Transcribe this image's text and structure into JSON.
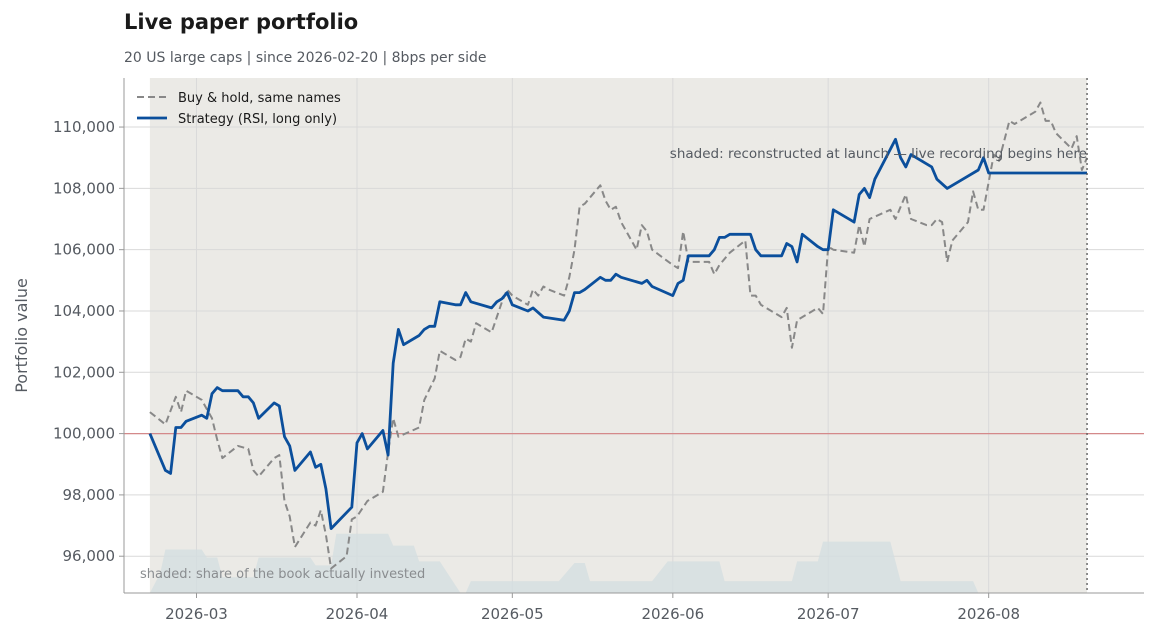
{
  "header": {
    "title": "Live paper portfolio",
    "subtitle": "20 US large caps | since 2026-02-20 | 8bps per side"
  },
  "chart_data": {
    "type": "line",
    "title": "Live paper portfolio",
    "subtitle": "20 US large caps | since 2026-02-20 | 8bps per side",
    "xlabel": "",
    "ylabel": "Portfolio value",
    "x_ticks": [
      "2026-03",
      "2026-04",
      "2026-05",
      "2026-06",
      "2026-07",
      "2026-08"
    ],
    "y_ticks": [
      "96,000",
      "98,000",
      "100,000",
      "102,000",
      "104,000",
      "106,000",
      "108,000",
      "110,000"
    ],
    "xlim": [
      "2026-02-15",
      "2026-08-31"
    ],
    "ylim": [
      94800,
      111600
    ],
    "grid": true,
    "legend_position": "top-left",
    "reference_line": {
      "y": 100000,
      "color": "#d4898a"
    },
    "shaded_region": {
      "from": "2026-02-20",
      "to": "2026-08-20",
      "color": "#ebeae6"
    },
    "live_marker": {
      "x": "2026-08-20",
      "style": "dotted"
    },
    "annotations": [
      "shaded: reconstructed at launch — live recording begins here",
      "shaded: share of the book actually invested"
    ],
    "series": [
      {
        "name": "Buy & hold, same names",
        "style": "dashed",
        "color": "#888888",
        "points": [
          [
            "2026-02-20",
            100700
          ],
          [
            "2026-02-23",
            100300
          ],
          [
            "2026-02-25",
            101200
          ],
          [
            "2026-02-26",
            100700
          ],
          [
            "2026-02-27",
            101400
          ],
          [
            "2026-03-02",
            101100
          ],
          [
            "2026-03-03",
            100800
          ],
          [
            "2026-03-04",
            100500
          ],
          [
            "2026-03-05",
            99800
          ],
          [
            "2026-03-06",
            99200
          ],
          [
            "2026-03-09",
            99600
          ],
          [
            "2026-03-11",
            99500
          ],
          [
            "2026-03-12",
            98800
          ],
          [
            "2026-03-13",
            98600
          ],
          [
            "2026-03-16",
            99200
          ],
          [
            "2026-03-17",
            99300
          ],
          [
            "2026-03-18",
            97800
          ],
          [
            "2026-03-19",
            97300
          ],
          [
            "2026-03-20",
            96300
          ],
          [
            "2026-03-23",
            97100
          ],
          [
            "2026-03-24",
            97000
          ],
          [
            "2026-03-25",
            97500
          ],
          [
            "2026-03-26",
            96700
          ],
          [
            "2026-03-27",
            95600
          ],
          [
            "2026-03-30",
            96000
          ],
          [
            "2026-03-31",
            97200
          ],
          [
            "2026-04-01",
            97300
          ],
          [
            "2026-04-03",
            97800
          ],
          [
            "2026-04-06",
            98100
          ],
          [
            "2026-04-07",
            99400
          ],
          [
            "2026-04-08",
            100500
          ],
          [
            "2026-04-09",
            99900
          ],
          [
            "2026-04-13",
            100200
          ],
          [
            "2026-04-14",
            101100
          ],
          [
            "2026-04-16",
            101800
          ],
          [
            "2026-04-17",
            102700
          ],
          [
            "2026-04-20",
            102400
          ],
          [
            "2026-04-21",
            102500
          ],
          [
            "2026-04-22",
            103100
          ],
          [
            "2026-04-23",
            103000
          ],
          [
            "2026-04-24",
            103600
          ],
          [
            "2026-04-27",
            103300
          ],
          [
            "2026-04-29",
            104300
          ],
          [
            "2026-04-30",
            104700
          ],
          [
            "2026-05-01",
            104500
          ],
          [
            "2026-05-04",
            104200
          ],
          [
            "2026-05-05",
            104700
          ],
          [
            "2026-05-06",
            104500
          ],
          [
            "2026-05-07",
            104800
          ],
          [
            "2026-05-08",
            104700
          ],
          [
            "2026-05-11",
            104500
          ],
          [
            "2026-05-12",
            105100
          ],
          [
            "2026-05-13",
            106000
          ],
          [
            "2026-05-14",
            107400
          ],
          [
            "2026-05-15",
            107500
          ],
          [
            "2026-05-18",
            108100
          ],
          [
            "2026-05-19",
            107600
          ],
          [
            "2026-05-20",
            107300
          ],
          [
            "2026-05-21",
            107400
          ],
          [
            "2026-05-22",
            106900
          ],
          [
            "2026-05-25",
            106000
          ],
          [
            "2026-05-26",
            106800
          ],
          [
            "2026-05-27",
            106600
          ],
          [
            "2026-05-28",
            106000
          ],
          [
            "2026-06-01",
            105500
          ],
          [
            "2026-06-02",
            105400
          ],
          [
            "2026-06-03",
            106600
          ],
          [
            "2026-06-04",
            105600
          ],
          [
            "2026-06-08",
            105600
          ],
          [
            "2026-06-09",
            105200
          ],
          [
            "2026-06-10",
            105500
          ],
          [
            "2026-06-12",
            105900
          ],
          [
            "2026-06-15",
            106300
          ],
          [
            "2026-06-16",
            104500
          ],
          [
            "2026-06-17",
            104500
          ],
          [
            "2026-06-18",
            104200
          ],
          [
            "2026-06-22",
            103800
          ],
          [
            "2026-06-23",
            104100
          ],
          [
            "2026-06-24",
            102800
          ],
          [
            "2026-06-25",
            103700
          ],
          [
            "2026-06-29",
            104100
          ],
          [
            "2026-06-30",
            103900
          ],
          [
            "2026-07-01",
            106100
          ],
          [
            "2026-07-02",
            106000
          ],
          [
            "2026-07-06",
            105900
          ],
          [
            "2026-07-07",
            106800
          ],
          [
            "2026-07-08",
            106100
          ],
          [
            "2026-07-09",
            107000
          ],
          [
            "2026-07-13",
            107300
          ],
          [
            "2026-07-14",
            107000
          ],
          [
            "2026-07-16",
            107800
          ],
          [
            "2026-07-17",
            107000
          ],
          [
            "2026-07-20",
            106800
          ],
          [
            "2026-07-21",
            106800
          ],
          [
            "2026-07-22",
            107000
          ],
          [
            "2026-07-23",
            106900
          ],
          [
            "2026-07-24",
            105600
          ],
          [
            "2026-07-25",
            106300
          ],
          [
            "2026-07-28",
            106900
          ],
          [
            "2026-07-29",
            107900
          ],
          [
            "2026-07-30",
            107300
          ],
          [
            "2026-07-31",
            107300
          ],
          [
            "2026-08-02",
            109100
          ],
          [
            "2026-08-03",
            108900
          ],
          [
            "2026-08-05",
            110200
          ],
          [
            "2026-08-06",
            110100
          ],
          [
            "2026-08-10",
            110500
          ],
          [
            "2026-08-11",
            110800
          ],
          [
            "2026-08-12",
            110200
          ],
          [
            "2026-08-13",
            110200
          ],
          [
            "2026-08-14",
            109800
          ],
          [
            "2026-08-17",
            109300
          ],
          [
            "2026-08-18",
            109700
          ],
          [
            "2026-08-19",
            108600
          ],
          [
            "2026-08-20",
            109000
          ]
        ]
      },
      {
        "name": "Strategy (RSI, long only)",
        "style": "solid",
        "color": "#0b4f9c",
        "points": [
          [
            "2026-02-20",
            100000
          ],
          [
            "2026-02-23",
            98800
          ],
          [
            "2026-02-24",
            98700
          ],
          [
            "2026-02-25",
            100200
          ],
          [
            "2026-02-26",
            100200
          ],
          [
            "2026-02-27",
            100400
          ],
          [
            "2026-03-02",
            100600
          ],
          [
            "2026-03-03",
            100500
          ],
          [
            "2026-03-04",
            101300
          ],
          [
            "2026-03-05",
            101500
          ],
          [
            "2026-03-06",
            101400
          ],
          [
            "2026-03-09",
            101400
          ],
          [
            "2026-03-10",
            101200
          ],
          [
            "2026-03-11",
            101200
          ],
          [
            "2026-03-12",
            101000
          ],
          [
            "2026-03-13",
            100500
          ],
          [
            "2026-03-16",
            101000
          ],
          [
            "2026-03-17",
            100900
          ],
          [
            "2026-03-18",
            99900
          ],
          [
            "2026-03-19",
            99600
          ],
          [
            "2026-03-20",
            98800
          ],
          [
            "2026-03-23",
            99400
          ],
          [
            "2026-03-24",
            98900
          ],
          [
            "2026-03-25",
            99000
          ],
          [
            "2026-03-26",
            98200
          ],
          [
            "2026-03-27",
            96900
          ],
          [
            "2026-03-31",
            97600
          ],
          [
            "2026-04-01",
            99700
          ],
          [
            "2026-04-02",
            100000
          ],
          [
            "2026-04-03",
            99500
          ],
          [
            "2026-04-06",
            100100
          ],
          [
            "2026-04-07",
            99300
          ],
          [
            "2026-04-08",
            102300
          ],
          [
            "2026-04-09",
            103400
          ],
          [
            "2026-04-10",
            102900
          ],
          [
            "2026-04-13",
            103200
          ],
          [
            "2026-04-14",
            103400
          ],
          [
            "2026-04-15",
            103500
          ],
          [
            "2026-04-16",
            103500
          ],
          [
            "2026-04-17",
            104300
          ],
          [
            "2026-04-20",
            104200
          ],
          [
            "2026-04-21",
            104200
          ],
          [
            "2026-04-22",
            104600
          ],
          [
            "2026-04-23",
            104300
          ],
          [
            "2026-04-27",
            104100
          ],
          [
            "2026-04-28",
            104300
          ],
          [
            "2026-04-29",
            104400
          ],
          [
            "2026-04-30",
            104600
          ],
          [
            "2026-05-01",
            104200
          ],
          [
            "2026-05-04",
            104000
          ],
          [
            "2026-05-05",
            104100
          ],
          [
            "2026-05-07",
            103800
          ],
          [
            "2026-05-11",
            103700
          ],
          [
            "2026-05-12",
            104000
          ],
          [
            "2026-05-13",
            104600
          ],
          [
            "2026-05-14",
            104600
          ],
          [
            "2026-05-15",
            104700
          ],
          [
            "2026-05-18",
            105100
          ],
          [
            "2026-05-19",
            105000
          ],
          [
            "2026-05-20",
            105000
          ],
          [
            "2026-05-21",
            105200
          ],
          [
            "2026-05-22",
            105100
          ],
          [
            "2026-05-26",
            104900
          ],
          [
            "2026-05-27",
            105000
          ],
          [
            "2026-05-28",
            104800
          ],
          [
            "2026-06-01",
            104500
          ],
          [
            "2026-06-02",
            104900
          ],
          [
            "2026-06-03",
            105000
          ],
          [
            "2026-06-04",
            105800
          ],
          [
            "2026-06-08",
            105800
          ],
          [
            "2026-06-09",
            106000
          ],
          [
            "2026-06-10",
            106400
          ],
          [
            "2026-06-11",
            106400
          ],
          [
            "2026-06-12",
            106500
          ],
          [
            "2026-06-15",
            106500
          ],
          [
            "2026-06-16",
            106500
          ],
          [
            "2026-06-17",
            106000
          ],
          [
            "2026-06-18",
            105800
          ],
          [
            "2026-06-22",
            105800
          ],
          [
            "2026-06-23",
            106200
          ],
          [
            "2026-06-24",
            106100
          ],
          [
            "2026-06-25",
            105600
          ],
          [
            "2026-06-26",
            106500
          ],
          [
            "2026-06-29",
            106100
          ],
          [
            "2026-06-30",
            106000
          ],
          [
            "2026-07-01",
            106000
          ],
          [
            "2026-07-02",
            107300
          ],
          [
            "2026-07-06",
            106900
          ],
          [
            "2026-07-07",
            107800
          ],
          [
            "2026-07-08",
            108000
          ],
          [
            "2026-07-09",
            107700
          ],
          [
            "2026-07-10",
            108300
          ],
          [
            "2026-07-14",
            109600
          ],
          [
            "2026-07-15",
            109000
          ],
          [
            "2026-07-16",
            108700
          ],
          [
            "2026-07-17",
            109100
          ],
          [
            "2026-07-21",
            108700
          ],
          [
            "2026-07-22",
            108300
          ],
          [
            "2026-07-24",
            108000
          ],
          [
            "2026-07-27",
            108300
          ],
          [
            "2026-07-30",
            108600
          ],
          [
            "2026-07-31",
            109000
          ],
          [
            "2026-08-01",
            108500
          ],
          [
            "2026-08-03",
            108500
          ],
          [
            "2026-08-20",
            108500
          ]
        ]
      }
    ],
    "invested_share": {
      "label": "shaded: share of the book actually invested",
      "points": [
        [
          "2026-02-20",
          0.0
        ],
        [
          "2026-02-22",
          0.25
        ],
        [
          "2026-02-23",
          0.55
        ],
        [
          "2026-03-02",
          0.55
        ],
        [
          "2026-03-03",
          0.45
        ],
        [
          "2026-03-05",
          0.45
        ],
        [
          "2026-03-06",
          0.2
        ],
        [
          "2026-03-12",
          0.2
        ],
        [
          "2026-03-13",
          0.45
        ],
        [
          "2026-03-23",
          0.45
        ],
        [
          "2026-03-24",
          0.35
        ],
        [
          "2026-03-27",
          0.35
        ],
        [
          "2026-03-28",
          0.75
        ],
        [
          "2026-04-07",
          0.75
        ],
        [
          "2026-04-08",
          0.6
        ],
        [
          "2026-04-12",
          0.6
        ],
        [
          "2026-04-13",
          0.4
        ],
        [
          "2026-04-17",
          0.4
        ],
        [
          "2026-04-21",
          0.0
        ],
        [
          "2026-04-22",
          0.0
        ],
        [
          "2026-04-23",
          0.15
        ],
        [
          "2026-05-10",
          0.15
        ],
        [
          "2026-05-13",
          0.38
        ],
        [
          "2026-05-15",
          0.38
        ],
        [
          "2026-05-16",
          0.15
        ],
        [
          "2026-05-28",
          0.15
        ],
        [
          "2026-05-31",
          0.4
        ],
        [
          "2026-06-10",
          0.4
        ],
        [
          "2026-06-11",
          0.15
        ],
        [
          "2026-06-24",
          0.15
        ],
        [
          "2026-06-25",
          0.4
        ],
        [
          "2026-06-29",
          0.4
        ],
        [
          "2026-06-30",
          0.65
        ],
        [
          "2026-07-13",
          0.65
        ],
        [
          "2026-07-15",
          0.15
        ],
        [
          "2026-07-29",
          0.15
        ],
        [
          "2026-07-30",
          0.0
        ],
        [
          "2026-08-20",
          0.0
        ]
      ]
    }
  }
}
